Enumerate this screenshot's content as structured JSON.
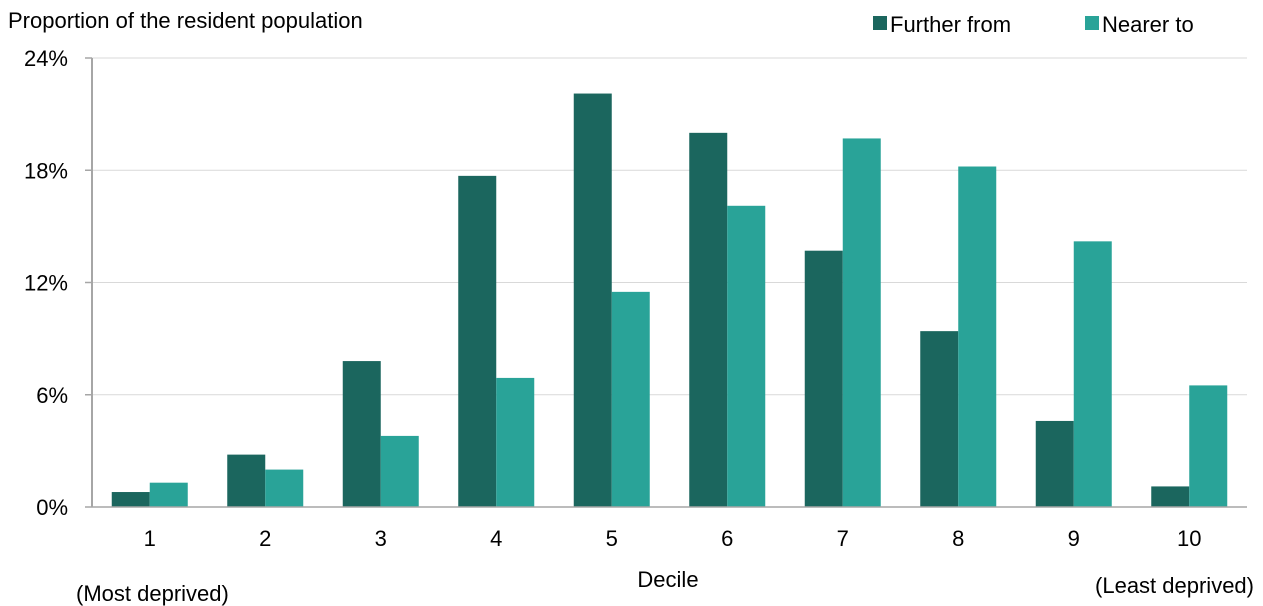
{
  "chart_data": {
    "type": "bar",
    "ylabel": "Proportion of the resident population",
    "xlabel": "Decile",
    "categories": [
      "1",
      "2",
      "3",
      "4",
      "5",
      "6",
      "7",
      "8",
      "9",
      "10"
    ],
    "x_end_notes": {
      "left": "(Most deprived)",
      "right": "(Least deprived)"
    },
    "ylim": [
      0,
      24
    ],
    "y_ticks": [
      0,
      6,
      12,
      18,
      24
    ],
    "y_tick_labels": [
      "0%",
      "6%",
      "12%",
      "18%",
      "24%"
    ],
    "grid": true,
    "legend_placement": "top-right",
    "series": [
      {
        "name": "Further from",
        "color": "#1b665e",
        "values": [
          0.8,
          2.8,
          7.8,
          17.7,
          22.1,
          20.0,
          13.7,
          9.4,
          4.6,
          1.1
        ]
      },
      {
        "name": "Nearer to",
        "color": "#29a398",
        "values": [
          1.3,
          2.0,
          3.8,
          6.9,
          11.5,
          16.1,
          19.7,
          18.2,
          14.2,
          6.5
        ]
      }
    ]
  }
}
